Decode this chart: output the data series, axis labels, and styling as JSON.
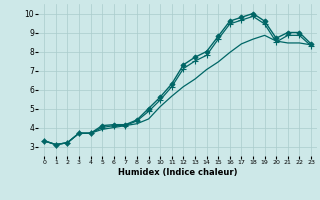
{
  "xlabel": "Humidex (Indice chaleur)",
  "xlim": [
    -0.5,
    23.5
  ],
  "ylim": [
    2.5,
    10.5
  ],
  "yticks": [
    3,
    4,
    5,
    6,
    7,
    8,
    9,
    10
  ],
  "xticks": [
    0,
    1,
    2,
    3,
    4,
    5,
    6,
    7,
    8,
    9,
    10,
    11,
    12,
    13,
    14,
    15,
    16,
    17,
    18,
    19,
    20,
    21,
    22,
    23
  ],
  "background_color": "#cde8e8",
  "grid_color": "#aacccc",
  "line_color": "#006666",
  "series": [
    {
      "y": [
        3.3,
        3.1,
        3.2,
        3.7,
        3.7,
        4.1,
        4.15,
        4.15,
        4.4,
        5.0,
        5.6,
        6.3,
        7.3,
        7.7,
        8.0,
        8.8,
        9.6,
        9.8,
        10.0,
        9.6,
        8.7,
        9.0,
        9.0,
        8.4
      ],
      "marker": "D",
      "markersize": 2.5,
      "linewidth": 1.0
    },
    {
      "y": [
        3.3,
        3.1,
        3.2,
        3.7,
        3.7,
        4.0,
        4.1,
        4.1,
        4.35,
        4.85,
        5.45,
        6.15,
        7.1,
        7.5,
        7.8,
        8.65,
        9.45,
        9.65,
        9.85,
        9.45,
        8.5,
        8.85,
        8.85,
        8.3
      ],
      "marker": "+",
      "markersize": 4,
      "linewidth": 0.9
    },
    {
      "y": [
        3.3,
        3.1,
        3.2,
        3.7,
        3.7,
        3.9,
        4.0,
        4.1,
        4.2,
        4.45,
        5.1,
        5.65,
        6.15,
        6.55,
        7.05,
        7.45,
        7.95,
        8.4,
        8.65,
        8.85,
        8.55,
        8.45,
        8.45,
        8.35
      ],
      "marker": null,
      "markersize": 0,
      "linewidth": 0.9
    }
  ]
}
